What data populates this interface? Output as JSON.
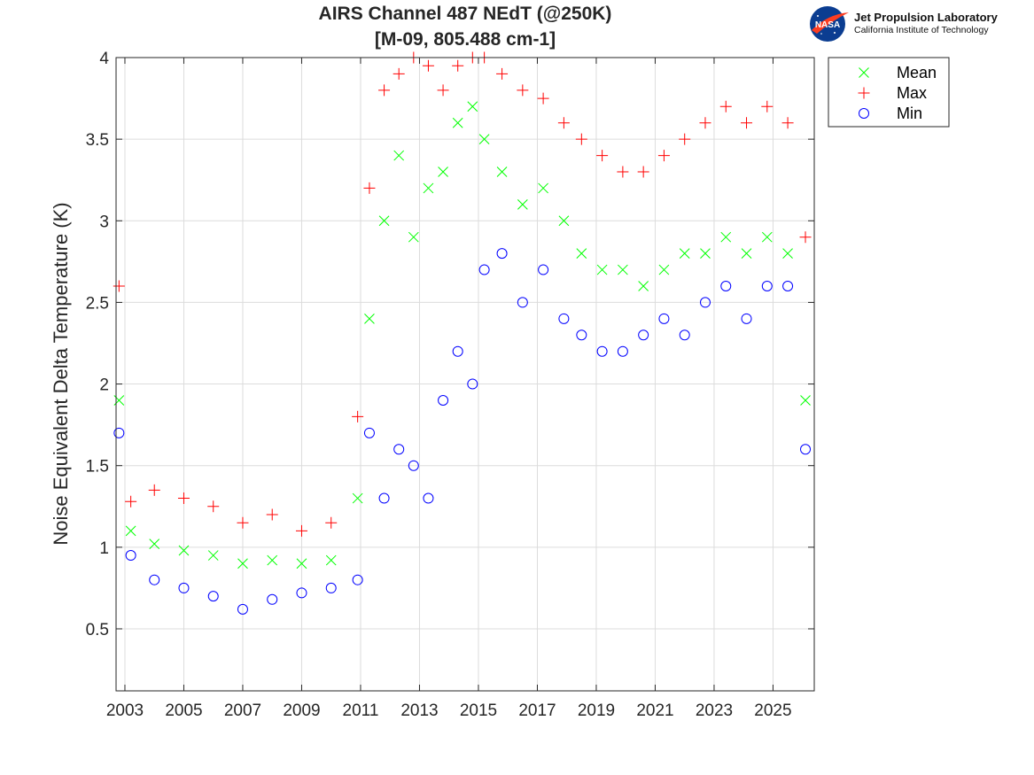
{
  "logo": {
    "org_name": "Jet Propulsion Laboratory",
    "org_sub": "California Institute of Technology",
    "badge": "NASA"
  },
  "chart_data": {
    "type": "scatter",
    "title": "AIRS Channel 487 NEdT (@250K)",
    "subtitle": "[M-09, 805.488 cm-1]",
    "xlabel": "",
    "ylabel": "Noise Equivalent Delta Temperature (K)",
    "xlim": [
      2002.7,
      2026.4
    ],
    "ylim": [
      0.12,
      4.0
    ],
    "yticks": [
      "0.5",
      "1",
      "1.5",
      "2",
      "2.5",
      "3",
      "3.5",
      "4"
    ],
    "xticks": [
      "2003",
      "2005",
      "2007",
      "2009",
      "2011",
      "2013",
      "2015",
      "2017",
      "2019",
      "2021",
      "2023",
      "2025"
    ],
    "grid": true,
    "legend_position": "top-right outside",
    "series": [
      {
        "name": "Mean",
        "marker": "x",
        "color": "#00ff00",
        "x": [
          2002.8,
          2003.2,
          2004.0,
          2005.0,
          2006.0,
          2007.0,
          2008.0,
          2009.0,
          2010.0,
          2010.9,
          2011.3,
          2011.8,
          2012.3,
          2012.8,
          2013.3,
          2013.8,
          2014.3,
          2014.8,
          2015.2,
          2015.8,
          2016.5,
          2017.2,
          2017.9,
          2018.5,
          2019.2,
          2019.9,
          2020.6,
          2021.3,
          2022.0,
          2022.7,
          2023.4,
          2024.1,
          2024.8,
          2025.5,
          2026.1
        ],
        "y": [
          1.9,
          1.1,
          1.02,
          0.98,
          0.95,
          0.9,
          0.92,
          0.9,
          0.92,
          1.3,
          2.4,
          3.0,
          3.4,
          2.9,
          3.2,
          3.3,
          3.6,
          3.7,
          3.5,
          3.3,
          3.1,
          3.2,
          3.0,
          2.8,
          2.7,
          2.7,
          2.6,
          2.7,
          2.8,
          2.8,
          2.9,
          2.8,
          2.9,
          2.8,
          1.9
        ]
      },
      {
        "name": "Max",
        "marker": "+",
        "color": "#ff0000",
        "x": [
          2002.8,
          2003.2,
          2004.0,
          2005.0,
          2006.0,
          2007.0,
          2008.0,
          2009.0,
          2010.0,
          2010.9,
          2011.3,
          2011.8,
          2012.3,
          2012.8,
          2013.3,
          2013.8,
          2014.3,
          2014.8,
          2015.2,
          2015.8,
          2016.5,
          2017.2,
          2017.9,
          2018.5,
          2019.2,
          2019.9,
          2020.6,
          2021.3,
          2022.0,
          2022.7,
          2023.4,
          2024.1,
          2024.8,
          2025.5,
          2026.1
        ],
        "y": [
          2.6,
          1.28,
          1.35,
          1.3,
          1.25,
          1.15,
          1.2,
          1.1,
          1.15,
          1.8,
          3.2,
          3.8,
          3.9,
          4.0,
          3.95,
          3.8,
          3.95,
          4.0,
          4.0,
          3.9,
          3.8,
          3.75,
          3.6,
          3.5,
          3.4,
          3.3,
          3.3,
          3.4,
          3.5,
          3.6,
          3.7,
          3.6,
          3.7,
          3.6,
          2.9
        ]
      },
      {
        "name": "Min",
        "marker": "o",
        "color": "#0000ff",
        "x": [
          2002.8,
          2003.2,
          2004.0,
          2005.0,
          2006.0,
          2007.0,
          2008.0,
          2009.0,
          2010.0,
          2010.9,
          2011.3,
          2011.8,
          2012.3,
          2012.8,
          2013.3,
          2013.8,
          2014.3,
          2014.8,
          2015.2,
          2015.8,
          2016.5,
          2017.2,
          2017.9,
          2018.5,
          2019.2,
          2019.9,
          2020.6,
          2021.3,
          2022.0,
          2022.7,
          2023.4,
          2024.1,
          2024.8,
          2025.5,
          2026.1
        ],
        "y": [
          1.7,
          0.95,
          0.8,
          0.75,
          0.7,
          0.62,
          0.68,
          0.72,
          0.75,
          0.8,
          1.7,
          1.3,
          1.6,
          1.5,
          1.3,
          1.9,
          2.2,
          2.0,
          2.7,
          2.8,
          2.5,
          2.7,
          2.4,
          2.3,
          2.2,
          2.2,
          2.3,
          2.4,
          2.3,
          2.5,
          2.6,
          2.4,
          2.6,
          2.6,
          1.6
        ]
      }
    ]
  }
}
